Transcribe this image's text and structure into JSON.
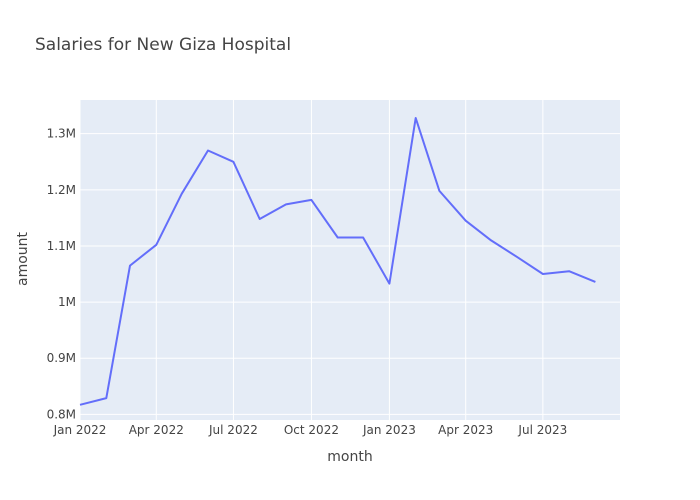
{
  "chart_data": {
    "type": "line",
    "title": "Salaries for New Giza Hospital",
    "xlabel": "month",
    "ylabel": "amount",
    "x": [
      "2022-01",
      "2022-02",
      "2022-03",
      "2022-04",
      "2022-05",
      "2022-06",
      "2022-07",
      "2022-08",
      "2022-09",
      "2022-10",
      "2022-11",
      "2022-12",
      "2023-01",
      "2023-02",
      "2023-03",
      "2023-04",
      "2023-05",
      "2023-06",
      "2023-07",
      "2023-08",
      "2023-09"
    ],
    "series": [
      {
        "values": [
          817000,
          829000,
          1065000,
          1102000,
          1193000,
          1270000,
          1250000,
          1148000,
          1174000,
          1182000,
          1115000,
          1115000,
          1033000,
          1328000,
          1198000,
          1145000,
          1110000,
          1080000,
          1050000,
          1055000,
          1036000
        ]
      }
    ],
    "x_range": [
      "2022-01-01",
      "2023-09-30"
    ],
    "ylim": [
      790000,
      1360000
    ],
    "x_ticks": [
      {
        "date": "2022-01-01",
        "label": "Jan 2022"
      },
      {
        "date": "2022-04-01",
        "label": "Apr 2022"
      },
      {
        "date": "2022-07-01",
        "label": "Jul 2022"
      },
      {
        "date": "2022-10-01",
        "label": "Oct 2022"
      },
      {
        "date": "2023-01-01",
        "label": "Jan 2023"
      },
      {
        "date": "2023-04-01",
        "label": "Apr 2023"
      },
      {
        "date": "2023-07-01",
        "label": "Jul 2023"
      }
    ],
    "y_ticks": [
      {
        "value": 800000,
        "label": "0.8M"
      },
      {
        "value": 900000,
        "label": "0.9M"
      },
      {
        "value": 1000000,
        "label": "1M"
      },
      {
        "value": 1100000,
        "label": "1.1M"
      },
      {
        "value": 1200000,
        "label": "1.2M"
      },
      {
        "value": 1300000,
        "label": "1.3M"
      }
    ],
    "grid": true,
    "colors": {
      "line": "#636efa",
      "plot_bg": "#e5ecf6",
      "grid": "#ffffff"
    }
  }
}
